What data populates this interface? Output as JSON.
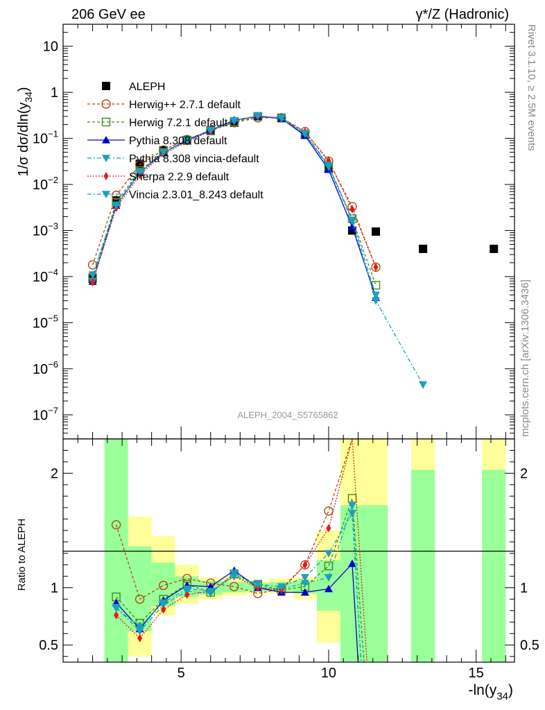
{
  "header": {
    "left": "206 GeV ee",
    "right": "γ*/Z (Hadronic)"
  },
  "side_labels": {
    "rivet": "Rivet 3.1.10, ≥ 2.5M events",
    "mcplots": "mcplots.cern.ch [arXiv:1306.3436]"
  },
  "watermark": "ALEPH_2004_S5765862",
  "chart_data": [
    {
      "type": "scatter",
      "panel": "main",
      "ylabel": "1/σ  dσ/dln(y34)",
      "ylabel_main": "1/σ  dσ/dln(y",
      "ylabel_sub": "34",
      "ylabel_close": ")",
      "yscale": "log",
      "xlim": [
        1.0,
        16.3
      ],
      "ylim": [
        3e-08,
        30
      ],
      "y_ticks": [
        {
          "value": 10,
          "base": "10",
          "exp": ""
        },
        {
          "value": 1,
          "base": "1",
          "exp": ""
        },
        {
          "value": 0.1,
          "base": "10",
          "exp": "−1"
        },
        {
          "value": 0.01,
          "base": "10",
          "exp": "−2"
        },
        {
          "value": 0.001,
          "base": "10",
          "exp": "−3"
        },
        {
          "value": 0.0001,
          "base": "10",
          "exp": "−4"
        },
        {
          "value": 1e-05,
          "base": "10",
          "exp": "−5"
        },
        {
          "value": 1e-06,
          "base": "10",
          "exp": "−6"
        },
        {
          "value": 1e-07,
          "base": "10",
          "exp": "−7"
        }
      ],
      "legend_position": "top-left",
      "series": [
        {
          "name": "ALEPH",
          "color": "#000000",
          "marker": "square-filled",
          "dash": "none",
          "x": [
            2.0,
            2.8,
            3.6,
            4.4,
            5.2,
            6.0,
            6.8,
            7.6,
            8.4,
            9.2,
            10.0,
            10.8,
            11.6,
            13.2,
            15.6
          ],
          "y": [
            9e-05,
            0.0045,
            0.028,
            0.055,
            0.09,
            0.15,
            0.22,
            0.3,
            0.28,
            0.12,
            0.022,
            0.001,
            0.00095,
            0.0004,
            0.0004
          ]
        },
        {
          "name": "Herwig++ 2.7.1 default",
          "color": "#b04a0c",
          "marker": "circle-open",
          "dash": "4,3",
          "x": [
            2.0,
            2.8,
            3.6,
            4.4,
            5.2,
            6.0,
            6.8,
            7.6,
            8.4,
            9.2,
            10.0,
            10.8,
            11.6
          ],
          "y": [
            0.00018,
            0.0058,
            0.027,
            0.056,
            0.095,
            0.15,
            0.22,
            0.28,
            0.28,
            0.14,
            0.032,
            0.0033,
            0.00016
          ]
        },
        {
          "name": "Herwig 7.2.1 default",
          "color": "#3c8c1e",
          "marker": "square-open",
          "dash": "4,3",
          "x": [
            2.0,
            2.8,
            3.6,
            4.4,
            5.2,
            6.0,
            6.8,
            7.6,
            8.4,
            9.2,
            10.0,
            10.8,
            11.6
          ],
          "y": [
            9.5e-05,
            0.0041,
            0.02,
            0.05,
            0.092,
            0.145,
            0.23,
            0.3,
            0.275,
            0.125,
            0.025,
            0.0018,
            6.5e-05
          ]
        },
        {
          "name": "Pythia 8.308 default",
          "color": "#0000cc",
          "marker": "triangle-up",
          "dash": "none",
          "x": [
            2.0,
            2.8,
            3.6,
            4.4,
            5.2,
            6.0,
            6.8,
            7.6,
            8.4,
            9.2,
            10.0,
            10.8,
            11.6
          ],
          "y": [
            7.8e-05,
            0.0035,
            0.018,
            0.049,
            0.092,
            0.15,
            0.25,
            0.3,
            0.27,
            0.115,
            0.021,
            0.0012,
            3.5e-05
          ]
        },
        {
          "name": "Pythia 8.308 vincia-default",
          "color": "#1aa0c0",
          "marker": "triangle-down",
          "dash": "6,3,2,3",
          "x": [
            2.0,
            2.8,
            3.6,
            4.4,
            5.2,
            6.0,
            6.8,
            7.6,
            8.4,
            9.2,
            10.0,
            10.8,
            11.6,
            13.2
          ],
          "y": [
            8e-05,
            0.0035,
            0.018,
            0.05,
            0.087,
            0.145,
            0.245,
            0.31,
            0.27,
            0.125,
            0.024,
            0.0016,
            3e-05,
            4.5e-07
          ]
        },
        {
          "name": "Sherpa 2.2.9 default",
          "color": "#e31a1c",
          "marker": "diamond",
          "dash": "2,2",
          "x": [
            2.0,
            2.8,
            3.6,
            4.4,
            5.2,
            6.0,
            6.8,
            7.6,
            8.4,
            9.2,
            10.0,
            10.8,
            11.6
          ],
          "y": [
            7.5e-05,
            0.0031,
            0.016,
            0.046,
            0.085,
            0.145,
            0.24,
            0.3,
            0.28,
            0.14,
            0.033,
            0.0029,
            0.00016
          ]
        },
        {
          "name": "Vincia 2.3.01_8.243 default",
          "color": "#1aa0c0",
          "marker": "triangle-down",
          "dash": "6,3,2,3",
          "x": [
            2.0,
            2.8,
            3.6,
            4.4,
            5.2,
            6.0,
            6.8,
            7.6,
            8.4,
            9.2,
            10.0,
            10.8,
            11.6
          ],
          "y": [
            0.00011,
            0.0036,
            0.019,
            0.05,
            0.09,
            0.15,
            0.24,
            0.31,
            0.28,
            0.13,
            0.026,
            0.0017,
            4e-05
          ]
        }
      ]
    },
    {
      "type": "line",
      "panel": "ratio",
      "ylabel": "Ratio to ALEPH",
      "xlabel": "-ln(y34)",
      "xlabel_main": "-ln(y",
      "xlabel_sub": "34",
      "xlabel_close": ")",
      "xlim": [
        1.0,
        16.3
      ],
      "ylim": [
        0.35,
        2.3
      ],
      "x_ticks": [
        5,
        10,
        15
      ],
      "y_ticks": [
        0.5,
        1,
        2
      ],
      "reference_line": 1,
      "uncertainty_bands": {
        "stat_color": "#99ff99",
        "total_color": "#ffff99",
        "bins": [
          {
            "x0": 2.4,
            "x1": 3.2,
            "tot": [
              0.35,
              2.3
            ],
            "stat": [
              0.35,
              2.3
            ]
          },
          {
            "x0": 3.2,
            "x1": 4.0,
            "tot": [
              0.4,
              1.62
            ],
            "stat": [
              0.62,
              1.36
            ]
          },
          {
            "x0": 4.0,
            "x1": 4.8,
            "tot": [
              0.76,
              1.45
            ],
            "stat": [
              0.84,
              1.22
            ]
          },
          {
            "x0": 4.8,
            "x1": 5.6,
            "tot": [
              0.86,
              1.2
            ],
            "stat": [
              0.92,
              1.1
            ]
          },
          {
            "x0": 5.6,
            "x1": 6.4,
            "tot": [
              0.9,
              1.09
            ],
            "stat": [
              0.94,
              1.06
            ]
          },
          {
            "x0": 6.4,
            "x1": 7.2,
            "tot": [
              0.93,
              1.1
            ],
            "stat": [
              0.96,
              1.05
            ]
          },
          {
            "x0": 7.2,
            "x1": 8.0,
            "tot": [
              0.95,
              1.06
            ],
            "stat": [
              0.97,
              1.04
            ]
          },
          {
            "x0": 8.0,
            "x1": 8.8,
            "tot": [
              0.95,
              1.08
            ],
            "stat": [
              0.97,
              1.05
            ]
          },
          {
            "x0": 8.8,
            "x1": 9.6,
            "tot": [
              0.9,
              1.09
            ],
            "stat": [
              0.95,
              1.06
            ]
          },
          {
            "x0": 9.6,
            "x1": 10.4,
            "tot": [
              0.52,
              1.5
            ],
            "stat": [
              0.8,
              1.24
            ]
          },
          {
            "x0": 10.4,
            "x1": 11.2,
            "tot": [
              0.35,
              2.3
            ],
            "stat": [
              0.35,
              1.72
            ]
          },
          {
            "x0": 11.2,
            "x1": 12.0,
            "tot": [
              0.35,
              2.3
            ],
            "stat": [
              0.35,
              1.72
            ]
          },
          {
            "x0": 12.8,
            "x1": 13.6,
            "tot": [
              0.35,
              2.3
            ],
            "stat": [
              0.35,
              2.03
            ]
          },
          {
            "x0": 15.2,
            "x1": 16.0,
            "tot": [
              0.35,
              2.3
            ],
            "stat": [
              0.35,
              2.03
            ]
          }
        ]
      },
      "series": [
        {
          "name": "Herwig++ 2.7.1 default",
          "color": "#b04a0c",
          "marker": "circle-open",
          "dash": "4,3",
          "x": [
            2.8,
            3.6,
            4.4,
            5.2,
            6.0,
            6.8,
            7.6,
            8.4,
            9.2,
            10.0,
            10.8,
            11.0
          ],
          "y": [
            1.55,
            0.9,
            1.02,
            1.08,
            1.04,
            1.01,
            0.95,
            0.99,
            1.2,
            1.67,
            2.3,
            2.3
          ]
        },
        {
          "name": "Herwig 7.2.1 default",
          "color": "#3c8c1e",
          "marker": "square-open",
          "dash": "4,3",
          "x": [
            2.8,
            3.6,
            4.4,
            5.2,
            6.0,
            6.8,
            7.6,
            8.4,
            9.2,
            10.0,
            10.8,
            11.2
          ],
          "y": [
            0.92,
            0.69,
            0.9,
            1.03,
            0.96,
            1.12,
            1.03,
            0.98,
            1.01,
            1.19,
            1.78,
            0.35
          ]
        },
        {
          "name": "Pythia 8.308 default",
          "color": "#0000cc",
          "marker": "triangle-up",
          "dash": "none",
          "x": [
            2.8,
            3.6,
            4.4,
            5.2,
            6.0,
            6.8,
            7.6,
            8.4,
            9.2,
            10.0,
            10.8,
            11.0
          ],
          "y": [
            0.87,
            0.64,
            0.89,
            1.02,
            1.01,
            1.15,
            1.0,
            0.96,
            0.96,
            0.99,
            1.21,
            0.35
          ]
        },
        {
          "name": "Pythia 8.308 vincia-default",
          "color": "#1aa0c0",
          "marker": "triangle-down",
          "dash": "6,3,2,3",
          "x": [
            2.8,
            3.6,
            4.4,
            5.2,
            6.0,
            6.8,
            7.6,
            8.4,
            9.2,
            10.0,
            10.8,
            11.1
          ],
          "y": [
            0.83,
            0.62,
            0.85,
            0.97,
            0.95,
            1.13,
            1.0,
            0.99,
            1.04,
            1.09,
            1.72,
            0.35
          ]
        },
        {
          "name": "Sherpa 2.2.9 default",
          "color": "#e31a1c",
          "marker": "diamond",
          "dash": "2,2",
          "x": [
            2.8,
            3.6,
            4.4,
            5.2,
            6.0,
            6.8,
            7.6,
            8.4,
            9.2,
            10.0,
            10.8,
            11.3
          ],
          "y": [
            0.76,
            0.56,
            0.81,
            0.94,
            0.97,
            1.1,
            1.0,
            0.98,
            1.2,
            1.52,
            2.3,
            0.35
          ]
        },
        {
          "name": "Vincia 2.3.01_8.243 default",
          "color": "#1aa0c0",
          "marker": "triangle-down",
          "dash": "6,3,2,3",
          "x": [
            2.8,
            3.6,
            4.4,
            5.2,
            6.0,
            6.8,
            7.6,
            8.4,
            9.2,
            10.0,
            10.8,
            11.1
          ],
          "y": [
            0.82,
            0.66,
            0.87,
            0.99,
            0.97,
            1.1,
            1.03,
            1.01,
            1.09,
            1.3,
            1.65,
            0.35
          ]
        }
      ]
    }
  ]
}
